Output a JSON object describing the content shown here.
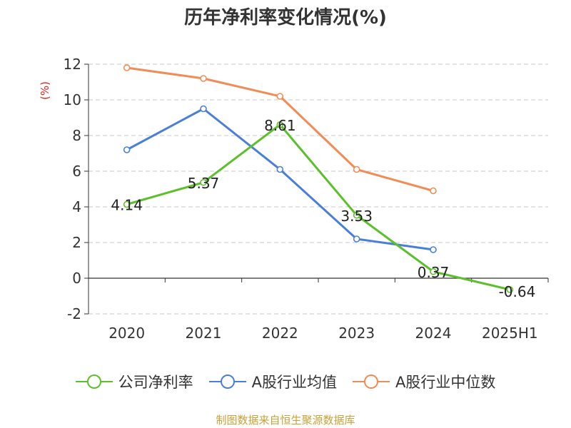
{
  "chart_data": {
    "type": "line",
    "title": "历年净利率变化情况(%)",
    "ylabel": "(%)",
    "xlabel": "",
    "categories": [
      "2020",
      "2021",
      "2022",
      "2023",
      "2024",
      "2025H1"
    ],
    "ylim": [
      -2,
      12
    ],
    "yticks": [
      -2,
      0,
      2,
      4,
      6,
      8,
      10,
      12
    ],
    "grid": true,
    "legend_position": "bottom",
    "series": [
      {
        "name": "公司净利率",
        "color": "#5cc02c",
        "values": [
          4.14,
          5.37,
          8.61,
          3.53,
          0.37,
          -0.64
        ],
        "labels": [
          "4.14",
          "5.37",
          "8.61",
          "3.53",
          "0.37",
          "-0.64"
        ]
      },
      {
        "name": "A股行业均值",
        "color": "#4a7fd9",
        "values": [
          7.2,
          9.5,
          6.1,
          2.2,
          1.6,
          null
        ]
      },
      {
        "name": "A股行业中位数",
        "color": "#f28c55",
        "values": [
          11.8,
          11.2,
          10.2,
          6.1,
          4.9,
          null
        ]
      }
    ]
  },
  "source": "制图数据来自恒生聚源数据库"
}
